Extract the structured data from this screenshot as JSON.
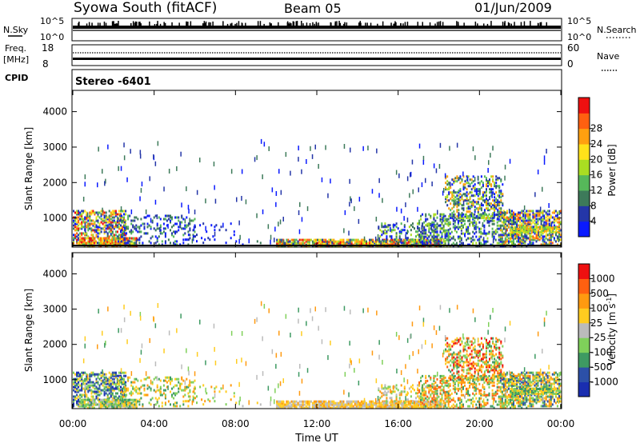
{
  "header": {
    "title": "Syowa South (fitACF)",
    "beam": "Beam 05",
    "date": "01/Jun/2009"
  },
  "strips": {
    "nsky_label": "N.Sky",
    "nsky_ticks": [
      "10^5",
      "10^0"
    ],
    "nsearch_label": "N.Search",
    "nsearch_ticks": [
      "10^5",
      "10^0"
    ],
    "freq_label": "Freq.",
    "freq_unit": "[MHz]",
    "freq_ticks": [
      "18",
      "8"
    ],
    "nave_label": "Nave",
    "nave_ticks": [
      "60",
      "0"
    ],
    "cpid_label": "CPID",
    "cpid_value": "Stereo -6401"
  },
  "colors": {
    "power": [
      "#0a1aff",
      "#2436a8",
      "#3d7a5a",
      "#56b85a",
      "#aadd22",
      "#ffe21a",
      "#ffa010",
      "#ff6010",
      "#ee1010"
    ],
    "velocity": [
      "#ee1010",
      "#ff6010",
      "#ff9a10",
      "#ffcc20",
      "#bbbbbb",
      "#7fd05a",
      "#3e9a62",
      "#2c50a8",
      "#1a2eb0"
    ]
  },
  "chart_data": [
    {
      "type": "heatmap",
      "title": "",
      "xlabel": "",
      "ylabel": "Slant Range [km]",
      "xlim": [
        "00:00",
        "24:00"
      ],
      "ylim": [
        180,
        4600
      ],
      "x_ticks": [
        "00:00",
        "04:00",
        "08:00",
        "12:00",
        "16:00",
        "20:00",
        "00:00"
      ],
      "y_ticks": [
        "1000",
        "2000",
        "3000",
        "4000"
      ],
      "colorbar_label": "Power [dB]",
      "colorbar_ticks": [
        "4",
        "8",
        "12",
        "16",
        "20",
        "24",
        "28"
      ],
      "colorbar_range": [
        0,
        30
      ]
    },
    {
      "type": "heatmap",
      "title": "",
      "xlabel": "Time UT",
      "ylabel": "Slant Range [km]",
      "xlim": [
        "00:00",
        "24:00"
      ],
      "ylim": [
        180,
        4600
      ],
      "x_ticks": [
        "00:00",
        "04:00",
        "08:00",
        "12:00",
        "16:00",
        "20:00",
        "00:00"
      ],
      "y_ticks": [
        "1000",
        "2000",
        "3000",
        "4000"
      ],
      "colorbar_label": "Velocity [m s",
      "colorbar_label_sup": "-1",
      "colorbar_label_end": "]",
      "colorbar_ticks": [
        "1000",
        "500",
        "100",
        "25",
        "-25",
        "-100",
        "-500",
        "-1000"
      ]
    }
  ]
}
